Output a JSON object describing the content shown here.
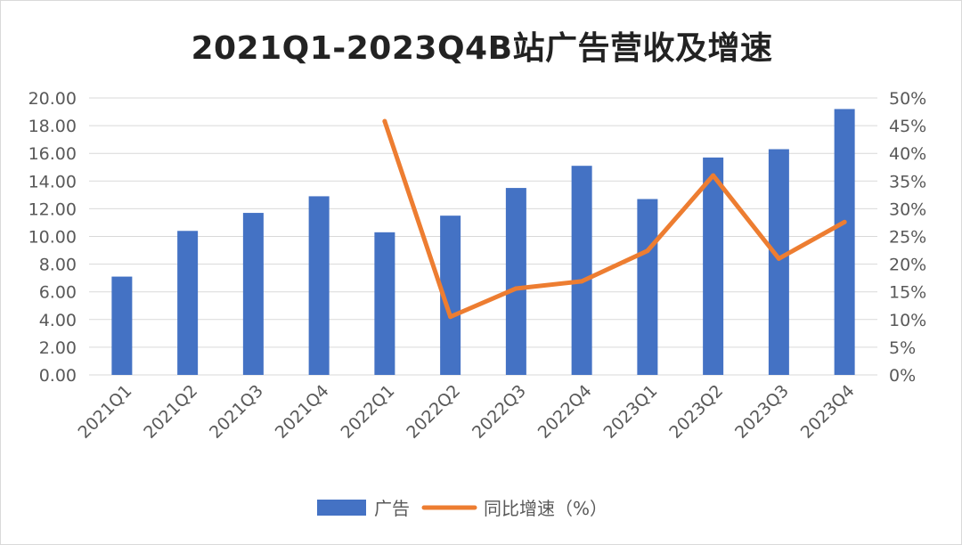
{
  "chart_data": {
    "type": "bar",
    "title": "2021Q1-2023Q4B站广告营收及增速",
    "categories": [
      "2021Q1",
      "2021Q2",
      "2021Q3",
      "2021Q4",
      "2022Q1",
      "2022Q2",
      "2022Q3",
      "2022Q4",
      "2023Q1",
      "2023Q2",
      "2023Q3",
      "2023Q4"
    ],
    "series": [
      {
        "name": "广告",
        "type": "bar",
        "axis": "left",
        "color": "#4472C4",
        "values": [
          7.1,
          10.4,
          11.7,
          12.9,
          10.3,
          11.5,
          13.5,
          15.1,
          12.7,
          15.7,
          16.3,
          19.2
        ]
      },
      {
        "name": "同比增速（%）",
        "type": "line",
        "axis": "right",
        "color": "#ED7D31",
        "values": [
          null,
          null,
          null,
          null,
          45.8,
          10.5,
          15.6,
          16.9,
          22.4,
          36.0,
          21.0,
          27.6
        ]
      }
    ],
    "ylim": [
      0,
      20
    ],
    "y_ticks": [
      "0.00",
      "2.00",
      "4.00",
      "6.00",
      "8.00",
      "10.00",
      "12.00",
      "14.00",
      "16.00",
      "18.00",
      "20.00"
    ],
    "y2lim": [
      0,
      50
    ],
    "y2_ticks": [
      "0%",
      "5%",
      "10%",
      "15%",
      "20%",
      "25%",
      "30%",
      "35%",
      "40%",
      "45%",
      "50%"
    ],
    "grid": true,
    "legend": "bottom"
  }
}
